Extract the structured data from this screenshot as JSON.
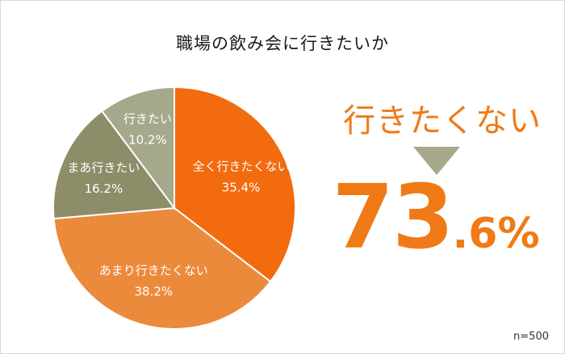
{
  "chart_data": {
    "type": "pie",
    "title": "職場の飲み会に行きたいか",
    "start_angle_deg": 0,
    "direction": "clockwise",
    "slices": [
      {
        "label": "全く行きたくない",
        "percent_label": "35.4%",
        "value": 35.4,
        "color": "#f26b0f"
      },
      {
        "label": "あまり行きたくない",
        "percent_label": "38.2%",
        "value": 38.2,
        "color": "#ec8a3c"
      },
      {
        "label": "まあ行きたい",
        "percent_label": "16.2%",
        "value": 16.2,
        "color": "#8e8d6a"
      },
      {
        "label": "行きたい",
        "percent_label": "10.2%",
        "value": 10.2,
        "color": "#a6a88b"
      }
    ],
    "sample_size": "n=500"
  },
  "callout": {
    "headline": "行きたくない",
    "value_int": "73",
    "value_dec": ".6%",
    "value": 73.6,
    "accent_color": "#f07a16",
    "arrow_color": "#a7a98a"
  }
}
